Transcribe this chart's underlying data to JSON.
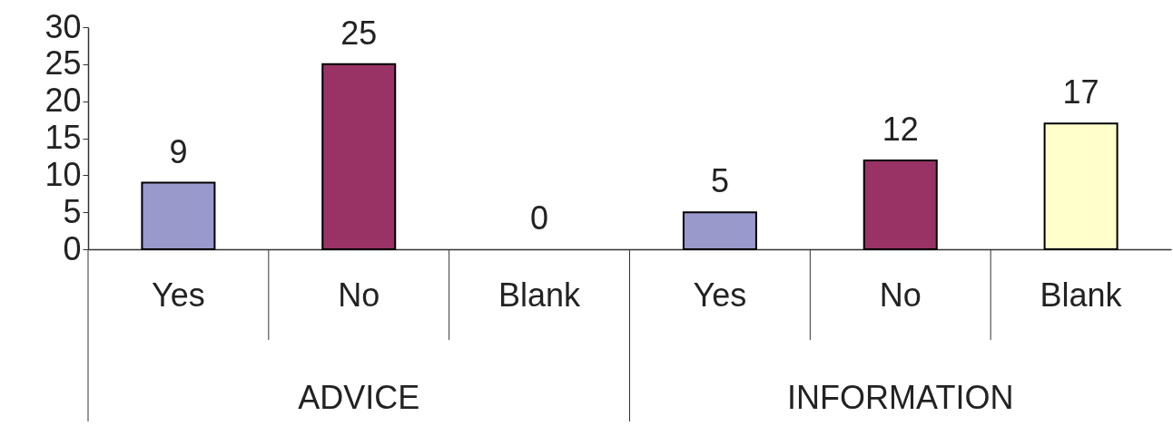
{
  "chart_data": {
    "type": "bar",
    "categories": [
      "Yes",
      "No",
      "Blank",
      "Yes",
      "No",
      "Blank"
    ],
    "values": [
      9,
      25,
      0,
      5,
      12,
      17
    ],
    "colors": [
      "#9999cc",
      "#993366",
      "#ffffcc",
      "#9999cc",
      "#993366",
      "#ffffcc"
    ],
    "ylim": [
      0,
      30
    ],
    "yticks": [
      0,
      5,
      10,
      15,
      20,
      25,
      30
    ],
    "data_labels": true,
    "grid": false,
    "annotations": [
      "ADVICE",
      "INFORMATION"
    ]
  }
}
